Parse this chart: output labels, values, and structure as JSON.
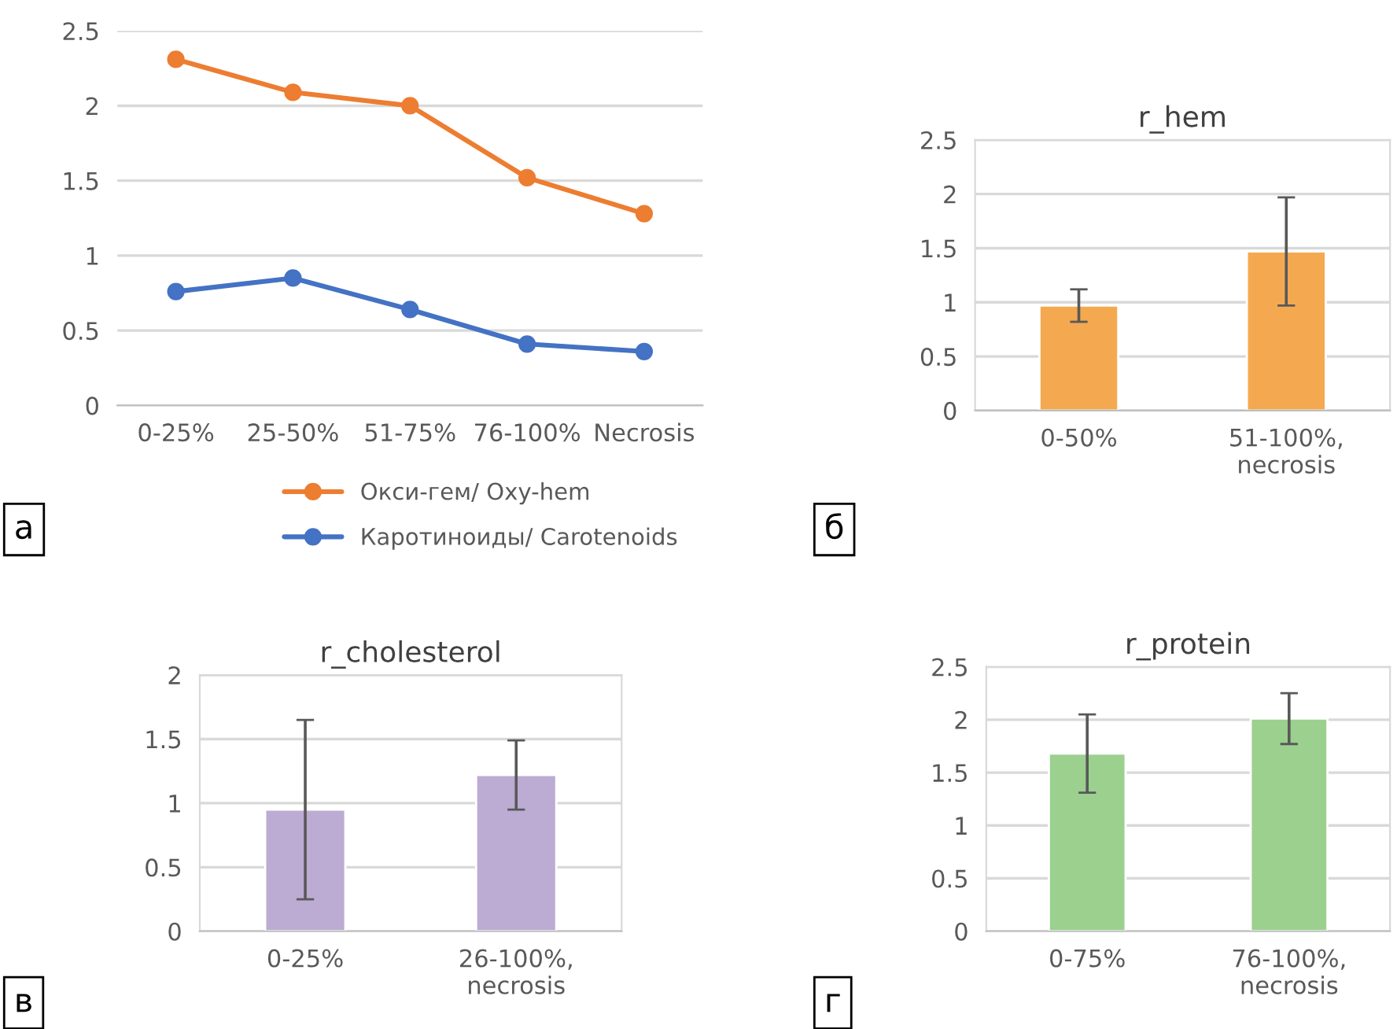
{
  "chart_data": [
    {
      "type": "line",
      "categories": [
        "0-25%",
        "25-50%",
        "51-75%",
        "76-100%",
        "Necrosis"
      ],
      "ylim": [
        0,
        2.5
      ],
      "yticks": [
        0,
        0.5,
        1,
        1.5,
        2,
        2.5
      ],
      "grid": "y",
      "legend": "bottom",
      "marker": "circle",
      "line_style": "solid",
      "series": [
        {
          "name": "Окси-гем/ Oxy-hem",
          "color": "#ed7d31",
          "values": [
            2.31,
            2.09,
            2.0,
            1.52,
            1.28
          ]
        },
        {
          "name": "Каротиноиды/ Carotenoids",
          "color": "#4472c4",
          "values": [
            0.76,
            0.85,
            0.64,
            0.41,
            0.36
          ]
        }
      ],
      "annotations": [
        "а"
      ]
    },
    {
      "type": "bar",
      "title": "r_hem",
      "categories": [
        "0-50%",
        "51-100%,\nnecrosis"
      ],
      "values": [
        0.97,
        1.47
      ],
      "errors": [
        0.15,
        0.5
      ],
      "color": "#f4a950",
      "ylim": [
        0,
        2.5
      ],
      "yticks": [
        0,
        0.5,
        1,
        1.5,
        2,
        2.5
      ],
      "grid": "y",
      "annotations": [
        "б"
      ]
    },
    {
      "type": "bar",
      "title": "r_cholesterol",
      "categories": [
        "0-25%",
        "26-100%,\nnecrosis"
      ],
      "values": [
        0.95,
        1.22
      ],
      "errors": [
        0.7,
        0.27
      ],
      "color": "#bcabd3",
      "ylim": [
        0,
        2
      ],
      "yticks": [
        0,
        0.5,
        1,
        1.5,
        2
      ],
      "grid": "y",
      "annotations": [
        "в"
      ]
    },
    {
      "type": "bar",
      "title": "r_protein",
      "categories": [
        "0-75%",
        "76-100%,\nnecrosis"
      ],
      "values": [
        1.68,
        2.01
      ],
      "errors": [
        0.37,
        0.24
      ],
      "color": "#9bd08e",
      "ylim": [
        0,
        2.5
      ],
      "yticks": [
        0,
        0.5,
        1,
        1.5,
        2,
        2.5
      ],
      "grid": "y",
      "annotations": [
        "г"
      ]
    }
  ]
}
